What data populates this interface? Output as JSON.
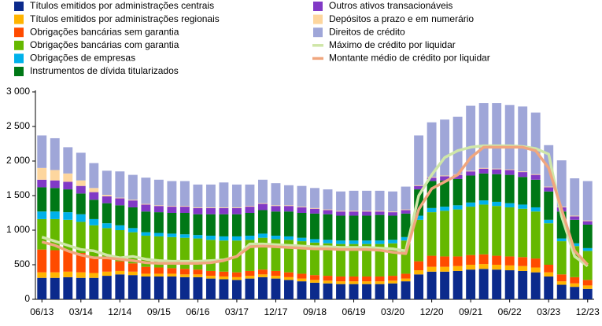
{
  "chart_data": {
    "type": "stacked-bar-line",
    "categories": [
      "06/13",
      null,
      null,
      "03/14",
      null,
      null,
      "12/14",
      null,
      null,
      "09/15",
      null,
      null,
      "06/16",
      null,
      null,
      "03/17",
      null,
      null,
      "12/17",
      null,
      null,
      "09/18",
      null,
      null,
      "06/19",
      null,
      null,
      "03/20",
      null,
      null,
      "12/20",
      null,
      null,
      "09/21",
      null,
      null,
      "06/22",
      null,
      null,
      "03/23",
      null,
      null,
      "12/23"
    ],
    "ylim": [
      0,
      3000
    ],
    "yticks": [
      0,
      500,
      {
        "value": 1000,
        "label": "1 000"
      },
      {
        "value": 1500,
        "label": "1 500"
      },
      {
        "value": 2000,
        "label": "2 000"
      },
      {
        "value": 2500,
        "label": "2 500"
      },
      {
        "value": 3000,
        "label": "3 000"
      }
    ],
    "series": [
      {
        "name": "Títulos emitidos por administrações centrais",
        "color": "#0b2a8c",
        "kind": "bar",
        "values": [
          310,
          310,
          320,
          310,
          310,
          340,
          360,
          350,
          330,
          330,
          330,
          320,
          320,
          300,
          290,
          280,
          300,
          320,
          300,
          280,
          260,
          240,
          230,
          220,
          220,
          220,
          220,
          230,
          260,
          360,
          400,
          400,
          410,
          430,
          440,
          430,
          420,
          410,
          390,
          330,
          210,
          180,
          150
        ]
      },
      {
        "name": "Títulos emitidos por administrações regionais",
        "color": "#ffb400",
        "kind": "bar",
        "values": [
          80,
          80,
          80,
          80,
          70,
          60,
          50,
          50,
          40,
          40,
          40,
          40,
          40,
          40,
          40,
          40,
          40,
          40,
          40,
          40,
          40,
          40,
          40,
          40,
          40,
          40,
          40,
          40,
          40,
          60,
          70,
          70,
          70,
          70,
          70,
          70,
          70,
          70,
          70,
          60,
          50,
          50,
          50
        ]
      },
      {
        "name": "Obrigações bancárias sem garantia",
        "color": "#ff4b00",
        "kind": "bar",
        "values": [
          330,
          320,
          300,
          280,
          240,
          180,
          140,
          120,
          100,
          90,
          80,
          80,
          70,
          70,
          70,
          70,
          70,
          70,
          70,
          70,
          70,
          70,
          70,
          70,
          70,
          70,
          70,
          70,
          70,
          130,
          160,
          150,
          140,
          140,
          140,
          130,
          130,
          130,
          130,
          110,
          100,
          90,
          80
        ]
      },
      {
        "name": "Obrigações bancárias com garantia",
        "color": "#65b800",
        "kind": "bar",
        "values": [
          440,
          450,
          450,
          450,
          450,
          450,
          450,
          450,
          450,
          450,
          450,
          450,
          450,
          450,
          450,
          460,
          450,
          460,
          460,
          470,
          470,
          470,
          470,
          470,
          470,
          470,
          470,
          470,
          480,
          600,
          630,
          660,
          680,
          700,
          720,
          720,
          710,
          700,
          680,
          600,
          480,
          450,
          420
        ]
      },
      {
        "name": "Obrigações de empresas",
        "color": "#00b1ea",
        "kind": "bar",
        "values": [
          110,
          110,
          110,
          110,
          90,
          70,
          70,
          60,
          50,
          50,
          50,
          50,
          50,
          60,
          60,
          60,
          60,
          60,
          50,
          50,
          50,
          50,
          50,
          50,
          50,
          50,
          50,
          50,
          50,
          60,
          60,
          60,
          60,
          60,
          60,
          60,
          60,
          60,
          60,
          50,
          40,
          40,
          40
        ]
      },
      {
        "name": "Instrumentos de dívida titularizados",
        "color": "#007816",
        "kind": "bar",
        "values": [
          350,
          340,
          330,
          300,
          280,
          290,
          290,
          300,
          300,
          300,
          300,
          310,
          300,
          310,
          320,
          320,
          330,
          340,
          350,
          360,
          360,
          370,
          370,
          360,
          360,
          360,
          370,
          350,
          340,
          380,
          390,
          380,
          380,
          390,
          390,
          400,
          410,
          400,
          400,
          410,
          390,
          340,
          340
        ]
      },
      {
        "name": "Outros ativos transacionáveis",
        "color": "#8139c6",
        "kind": "bar",
        "values": [
          110,
          110,
          110,
          110,
          110,
          100,
          100,
          100,
          100,
          90,
          90,
          90,
          90,
          90,
          90,
          90,
          90,
          90,
          80,
          80,
          80,
          70,
          60,
          60,
          60,
          60,
          50,
          50,
          50,
          50,
          50,
          60,
          60,
          60,
          70,
          70,
          70,
          70,
          70,
          60,
          60,
          50,
          50
        ]
      },
      {
        "name": "Depósitos a prazo e em numerário",
        "color": "#fdd69e",
        "kind": "bar",
        "values": [
          170,
          150,
          120,
          80,
          60,
          20,
          10,
          10,
          10,
          10,
          10,
          10,
          10,
          10,
          10,
          10,
          10,
          10,
          10,
          10,
          10,
          10,
          10,
          10,
          10,
          10,
          10,
          10,
          10,
          10,
          10,
          10,
          10,
          10,
          10,
          10,
          10,
          10,
          10,
          10,
          10,
          10,
          10
        ]
      },
      {
        "name": "Direitos de crédito",
        "color": "#9fa6d8",
        "kind": "bar",
        "values": [
          470,
          460,
          380,
          400,
          360,
          350,
          380,
          360,
          380,
          370,
          360,
          360,
          330,
          330,
          360,
          330,
          310,
          340,
          320,
          290,
          300,
          290,
          290,
          280,
          290,
          290,
          290,
          290,
          330,
          720,
          790,
          810,
          830,
          940,
          940,
          950,
          930,
          940,
          890,
          600,
          670,
          540,
          570
        ]
      },
      {
        "name": "Máximo de crédito por liquidar",
        "color": "#cfe6a8",
        "kind": "line",
        "values": [
          900,
          840,
          780,
          720,
          700,
          640,
          600,
          620,
          580,
          560,
          550,
          550,
          550,
          560,
          570,
          620,
          800,
          800,
          790,
          780,
          770,
          760,
          760,
          750,
          750,
          750,
          740,
          730,
          700,
          1500,
          1800,
          2050,
          2150,
          2200,
          2220,
          2220,
          2220,
          2210,
          2180,
          2100,
          1200,
          620,
          480
        ]
      },
      {
        "name": "Montante médio de crédito por liquidar",
        "color": "#f0a67e",
        "kind": "line",
        "values": [
          830,
          780,
          700,
          640,
          600,
          600,
          580,
          560,
          530,
          520,
          520,
          520,
          520,
          530,
          560,
          620,
          760,
          770,
          760,
          750,
          740,
          730,
          730,
          720,
          720,
          720,
          710,
          680,
          660,
          1300,
          1600,
          1700,
          1800,
          2050,
          2200,
          2200,
          2200,
          2200,
          2150,
          1900,
          1300,
          700,
          500
        ]
      }
    ]
  }
}
